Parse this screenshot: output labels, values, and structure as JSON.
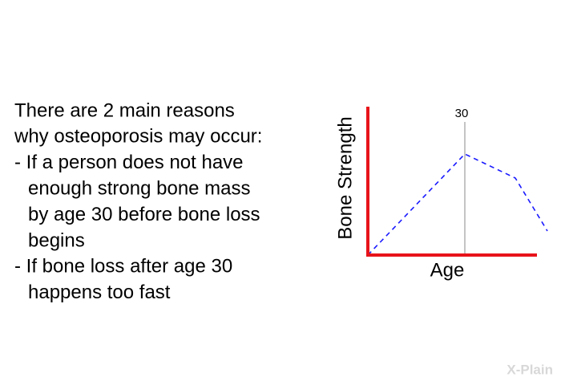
{
  "text": {
    "intro": [
      "There are 2 main reasons",
      "why osteoporosis may occur:"
    ],
    "items": [
      [
        "- If a person does not have",
        "enough strong bone mass",
        "by age 30 before bone loss",
        "begins"
      ],
      [
        "- If bone loss after age 30",
        "happens too fast"
      ]
    ]
  },
  "diagram": {
    "y_label": "Bone Strength",
    "x_label": "Age",
    "marker_label": "30"
  },
  "logo": "X-Plain"
}
